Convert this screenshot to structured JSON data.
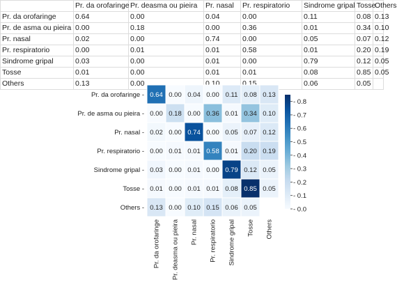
{
  "table": {
    "header": [
      "",
      "Pr. da orofaringe",
      "Pr. deasma ou pieira",
      "Pr. nasal",
      "Pr. respiratorio",
      "Sindrome gripal",
      "Tosse",
      "Others"
    ],
    "rows": [
      [
        "Pr. da orofaringe",
        "0.64",
        "0.00",
        "0.04",
        "0.00",
        "0.11",
        "0.08",
        "0.13"
      ],
      [
        "Pr. de asma ou pieira",
        "0.00",
        "0.18",
        "0.00",
        "0.36",
        "0.01",
        "0.34",
        "0.10"
      ],
      [
        "Pr. nasal",
        "0.02",
        "0.00",
        "0.74",
        "0.00",
        "0.05",
        "0.07",
        "0.12"
      ],
      [
        "Pr. respiratorio",
        "0.00",
        "0.01",
        "0.01",
        "0.58",
        "0.01",
        "0.20",
        "0.19"
      ],
      [
        "Sindrome gripal",
        "0.03",
        "0.00",
        "0.01",
        "0.00",
        "0.79",
        "0.12",
        "0.05"
      ],
      [
        "Tosse",
        "0.01",
        "0.00",
        "0.01",
        "0.01",
        "0.08",
        "0.85",
        "0.05"
      ],
      [
        "Others",
        "0.13",
        "0.00",
        "0.10",
        "0.15",
        "0.06",
        "0.05",
        ""
      ]
    ]
  },
  "chart_data": {
    "type": "heatmap",
    "row_labels": [
      "Pr. da orofaringe",
      "Pr. de asma ou pieira",
      "Pr. nasal",
      "Pr. respiratorio",
      "Sindrome gripal",
      "Tosse",
      "Others"
    ],
    "col_labels": [
      "Pr. da orofaringe",
      "Pr. deasma ou pieira",
      "Pr. nasal",
      "Pr. respiratorio",
      "Sindrome gripal",
      "Tosse",
      "Others"
    ],
    "values": [
      [
        0.64,
        0.0,
        0.04,
        0.0,
        0.11,
        0.08,
        0.13
      ],
      [
        0.0,
        0.18,
        0.0,
        0.36,
        0.01,
        0.34,
        0.1
      ],
      [
        0.02,
        0.0,
        0.74,
        0.0,
        0.05,
        0.07,
        0.12
      ],
      [
        0.0,
        0.01,
        0.01,
        0.58,
        0.01,
        0.2,
        0.19
      ],
      [
        0.03,
        0.0,
        0.01,
        0.0,
        0.79,
        0.12,
        0.05
      ],
      [
        0.01,
        0.0,
        0.01,
        0.01,
        0.08,
        0.85,
        0.05
      ],
      [
        0.13,
        0.0,
        0.1,
        0.15,
        0.06,
        0.05,
        null
      ]
    ],
    "cell_labels": [
      [
        "0.64",
        "0.00",
        "0.04",
        "0.00",
        "0.11",
        "0.08",
        "0.13"
      ],
      [
        "0.00",
        "0.18",
        "0.00",
        "0.36",
        "0.01",
        "0.34",
        "0.10"
      ],
      [
        "0.02",
        "0.00",
        "0.74",
        "0.00",
        "0.05",
        "0.07",
        "0.12"
      ],
      [
        "0.00",
        "0.01",
        "0.01",
        "0.58",
        "0.01",
        "0.20",
        "0.19"
      ],
      [
        "0.03",
        "0.00",
        "0.01",
        "0.00",
        "0.79",
        "0.12",
        "0.05"
      ],
      [
        "0.01",
        "0.00",
        "0.01",
        "0.01",
        "0.08",
        "0.85",
        "0.05"
      ],
      [
        "0.13",
        "0.00",
        "0.10",
        "0.15",
        "0.06",
        "0.05",
        ""
      ]
    ],
    "colorbar": {
      "range": [
        0.0,
        0.85
      ],
      "ticks": [
        "0.0",
        "0.1",
        "0.2",
        "0.3",
        "0.4",
        "0.5",
        "0.6",
        "0.7",
        "0.8"
      ],
      "tick_values": [
        0.0,
        0.1,
        0.2,
        0.3,
        0.4,
        0.5,
        0.6,
        0.7,
        0.8
      ]
    },
    "colormap": {
      "stops": [
        "#f7fbff",
        "#deebf7",
        "#c6dbef",
        "#9ecae1",
        "#6baed6",
        "#4292c6",
        "#2171b5",
        "#08519c",
        "#08306b"
      ],
      "empty_cell": "#ffffff"
    },
    "title": "",
    "xlabel": "",
    "ylabel": ""
  }
}
